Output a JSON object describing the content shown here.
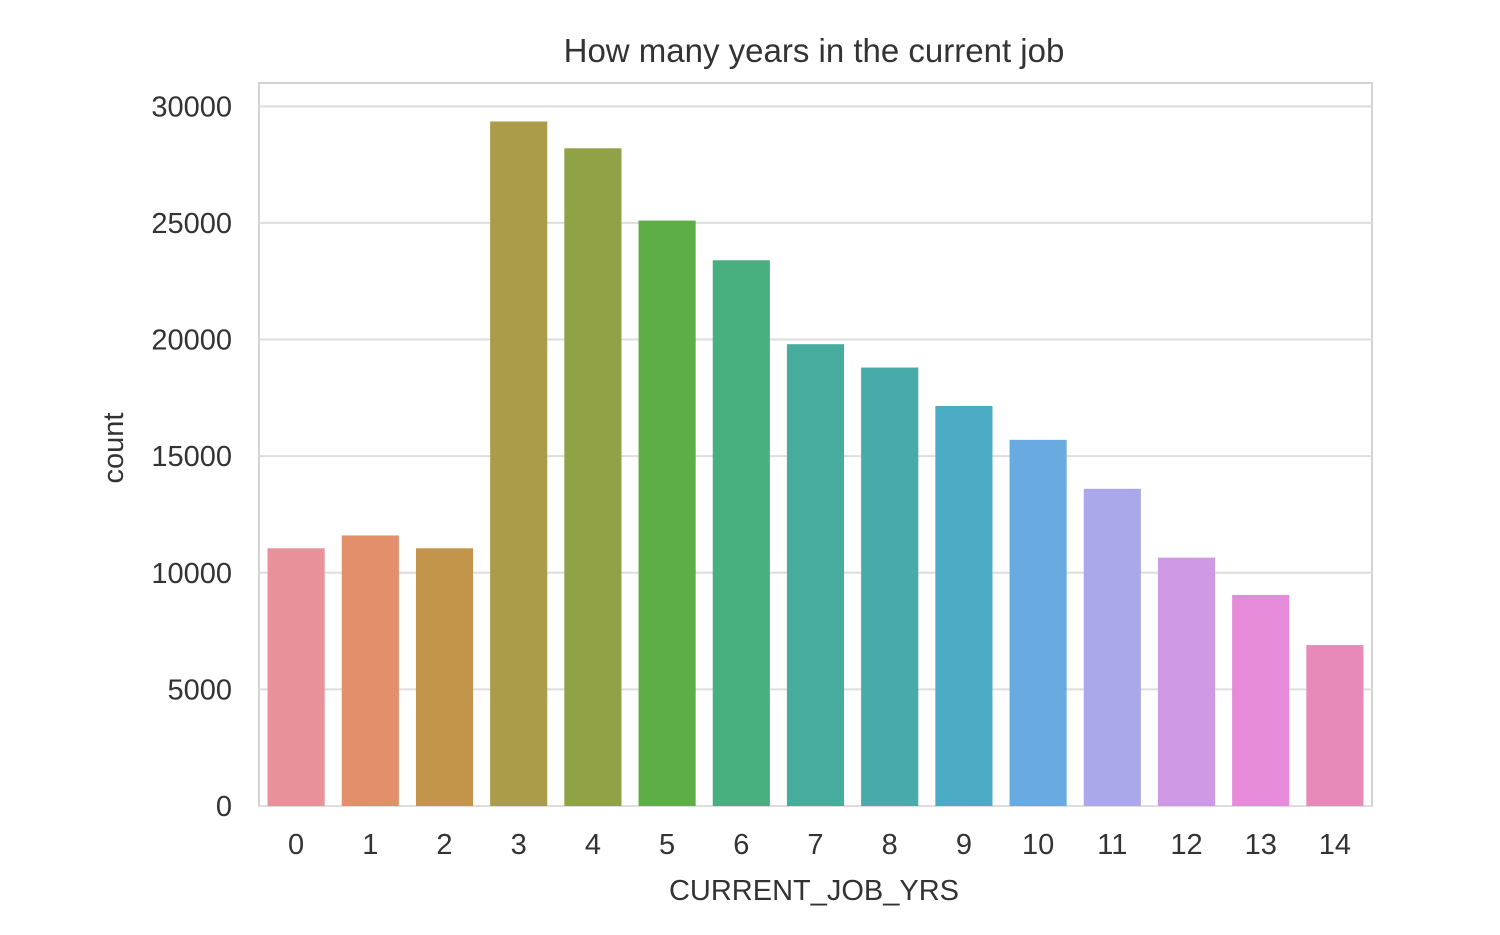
{
  "chart_data": {
    "type": "bar",
    "title": "How many years in the current job",
    "xlabel": "CURRENT_JOB_YRS",
    "ylabel": "count",
    "categories": [
      "0",
      "1",
      "2",
      "3",
      "4",
      "5",
      "6",
      "7",
      "8",
      "9",
      "10",
      "11",
      "12",
      "13",
      "14"
    ],
    "values": [
      11050,
      11600,
      11050,
      29350,
      28200,
      25100,
      23400,
      19800,
      18800,
      17150,
      15700,
      13600,
      10650,
      9050,
      6900
    ],
    "ylim": [
      0,
      31000
    ],
    "yticks": [
      0,
      5000,
      10000,
      15000,
      20000,
      25000,
      30000
    ],
    "grid": true,
    "legend": "none",
    "colors": [
      "#e8919a",
      "#e38f6b",
      "#c3954a",
      "#aa9c48",
      "#8fa246",
      "#5fad47",
      "#47b07e",
      "#46ad9c",
      "#47aba9",
      "#4cabc4",
      "#69aae0",
      "#aaa8eb",
      "#d099e6",
      "#e58bd9",
      "#e78ab9"
    ]
  }
}
